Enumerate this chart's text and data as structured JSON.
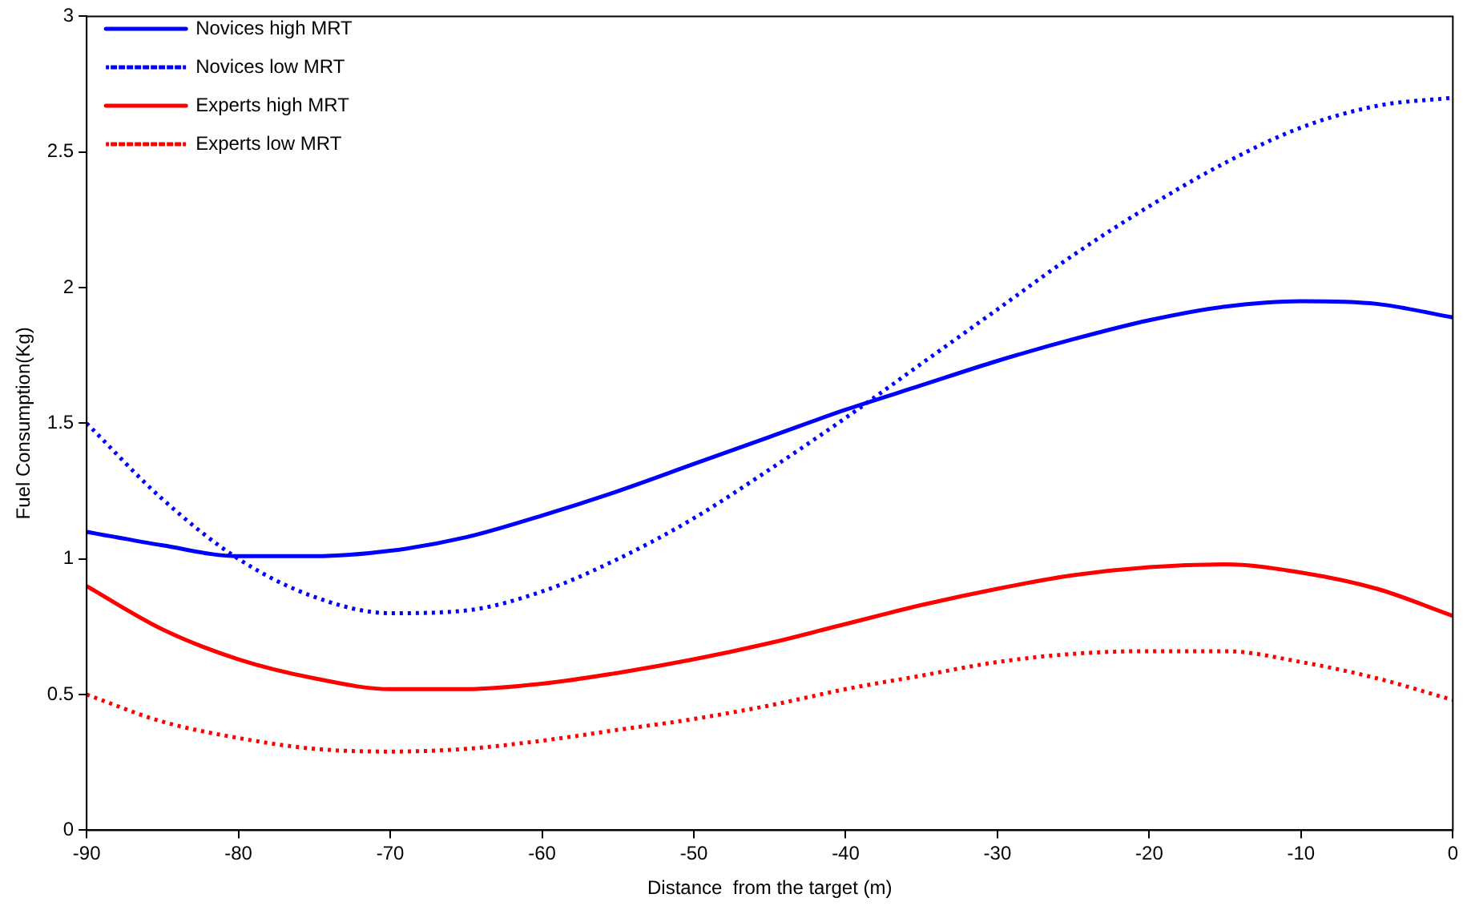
{
  "chart_data": {
    "type": "line",
    "xlabel": "Distance  from the target (m)",
    "ylabel": "Fuel Consumption(Kg)",
    "x": [
      -90,
      -85,
      -80,
      -75,
      -70,
      -65,
      -60,
      -55,
      -50,
      -45,
      -40,
      -35,
      -30,
      -25,
      -20,
      -15,
      -10,
      -5,
      0
    ],
    "xlim": [
      -90,
      0
    ],
    "xticks": [
      -90,
      -80,
      -70,
      -60,
      -50,
      -40,
      -30,
      -20,
      -10,
      0
    ],
    "ylim": [
      0,
      3
    ],
    "yticks": [
      0,
      0.5,
      1,
      1.5,
      2,
      2.5,
      3
    ],
    "grid": false,
    "legend": "top left",
    "marker": "none",
    "series": [
      {
        "name": "Novices high MRT",
        "color": "#0000ff",
        "line_style": "solid",
        "values": [
          1.1,
          1.05,
          1.01,
          1.01,
          1.03,
          1.08,
          1.16,
          1.25,
          1.35,
          1.45,
          1.55,
          1.64,
          1.73,
          1.81,
          1.88,
          1.93,
          1.95,
          1.94,
          1.89
        ]
      },
      {
        "name": "Novices low MRT",
        "color": "#0000ff",
        "line_style": "dotted",
        "values": [
          1.5,
          1.22,
          1.0,
          0.86,
          0.8,
          0.81,
          0.88,
          1.0,
          1.15,
          1.33,
          1.52,
          1.72,
          1.92,
          2.12,
          2.3,
          2.46,
          2.59,
          2.67,
          2.7
        ]
      },
      {
        "name": "Experts high MRT",
        "color": "#ff0000",
        "line_style": "solid",
        "values": [
          0.9,
          0.74,
          0.63,
          0.56,
          0.52,
          0.52,
          0.54,
          0.58,
          0.63,
          0.69,
          0.76,
          0.83,
          0.89,
          0.94,
          0.97,
          0.98,
          0.95,
          0.89,
          0.79
        ]
      },
      {
        "name": "Experts low MRT",
        "color": "#ff0000",
        "line_style": "dotted",
        "values": [
          0.5,
          0.4,
          0.34,
          0.3,
          0.29,
          0.3,
          0.33,
          0.37,
          0.41,
          0.46,
          0.52,
          0.57,
          0.62,
          0.65,
          0.66,
          0.66,
          0.62,
          0.56,
          0.48
        ]
      }
    ]
  }
}
